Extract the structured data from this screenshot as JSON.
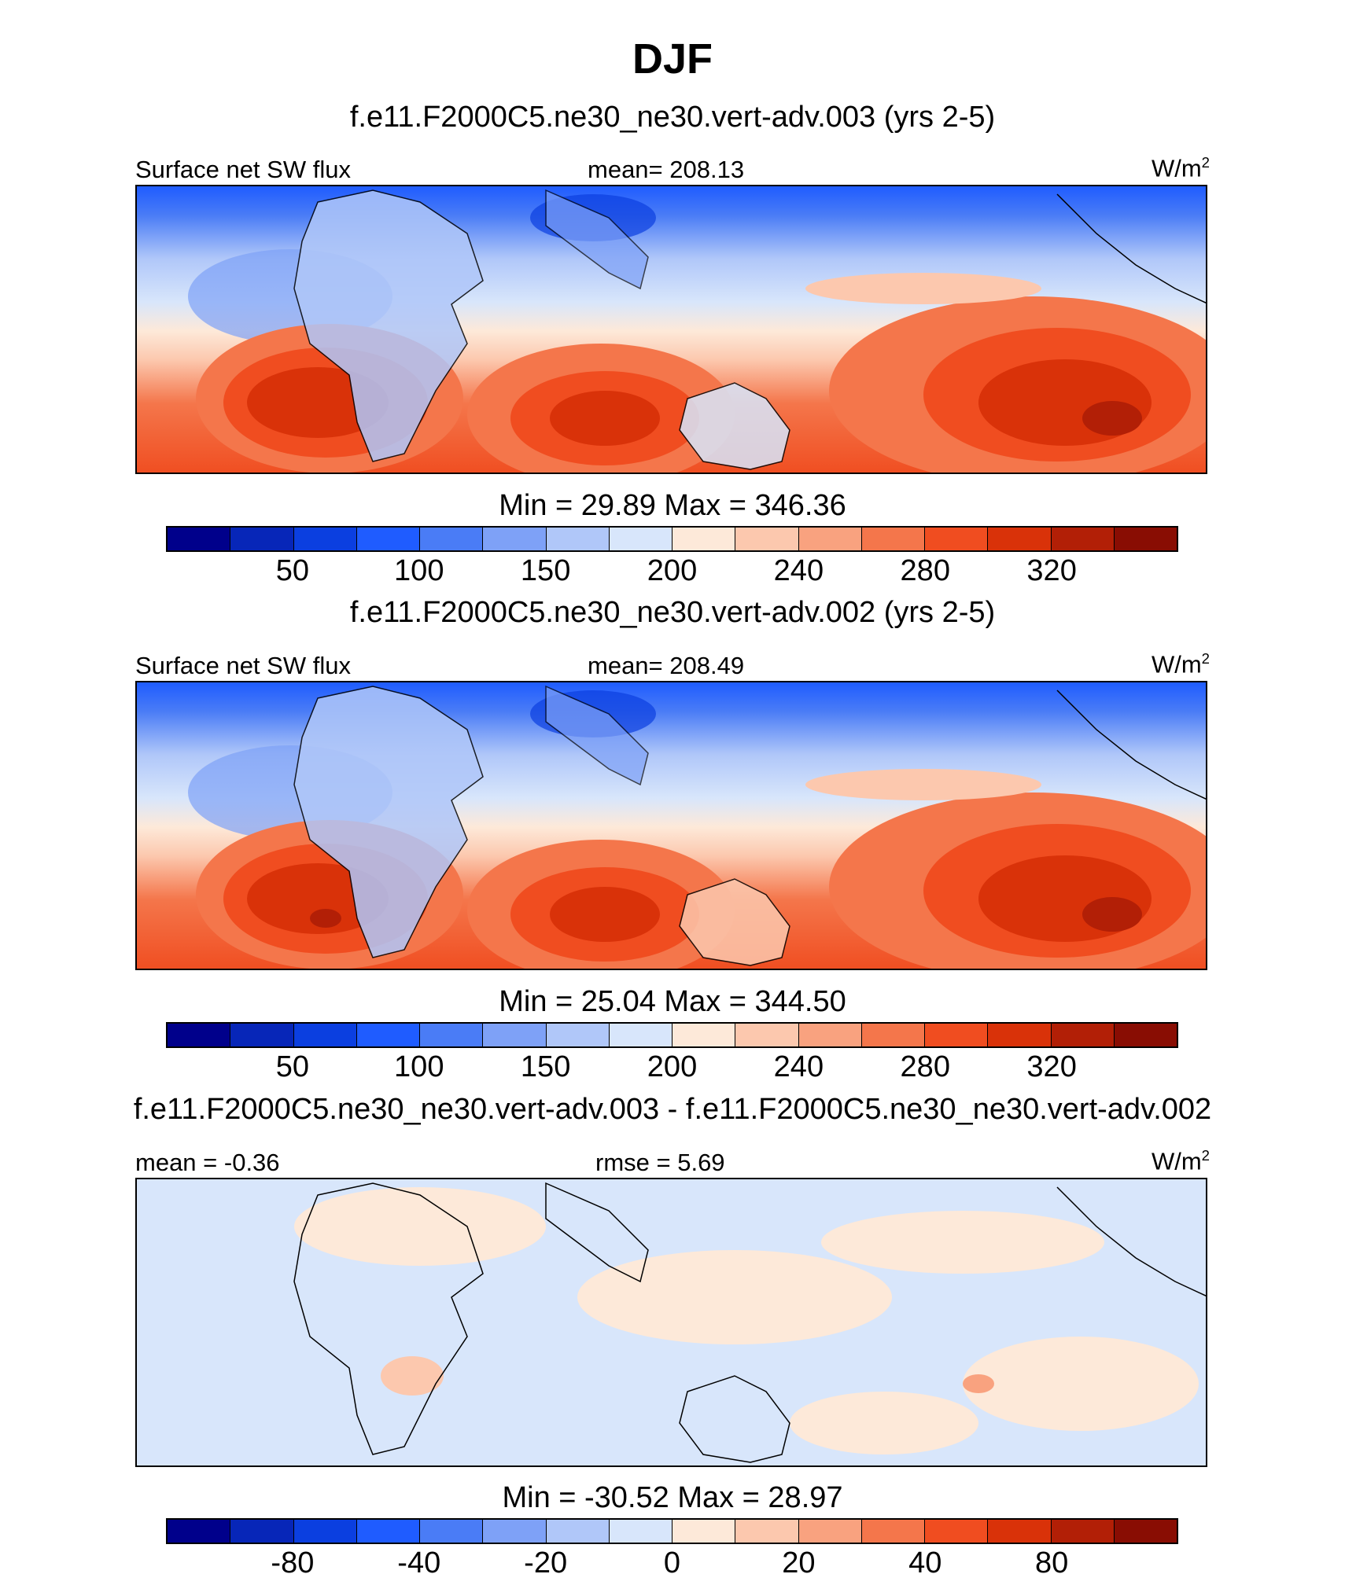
{
  "title": "DJF",
  "colors": [
    "#00008b",
    "#0726b8",
    "#0b3fe0",
    "#1f5cff",
    "#4a7cf6",
    "#7ea1f7",
    "#b0c7f9",
    "#d8e6fb",
    "#fde9d9",
    "#fcc8ae",
    "#f9a27f",
    "#f4764b",
    "#f04d20",
    "#d93209",
    "#b21f06",
    "#890d03"
  ],
  "panels": [
    {
      "title": "f.e11.F2000C5.ne30_ne30.vert-adv.003 (yrs 2-5)",
      "left_label": "Surface net SW flux",
      "center_label": "mean= 208.13",
      "units": "W/m",
      "units_sup": "2",
      "stats": "Min =  29.89 Max = 346.36",
      "ticks": [
        "50",
        "100",
        "150",
        "200",
        "240",
        "280",
        "320"
      ],
      "type": "field"
    },
    {
      "title": "f.e11.F2000C5.ne30_ne30.vert-adv.002 (yrs 2-5)",
      "left_label": "Surface net SW flux",
      "center_label": "mean= 208.49",
      "units": "W/m",
      "units_sup": "2",
      "stats": "Min =  25.04 Max = 344.50",
      "ticks": [
        "50",
        "100",
        "150",
        "200",
        "240",
        "280",
        "320"
      ],
      "type": "field"
    },
    {
      "title": "f.e11.F2000C5.ne30_ne30.vert-adv.003 - f.e11.F2000C5.ne30_ne30.vert-adv.002",
      "left_label": "mean =  -0.36",
      "center_label": "rmse =   5.69",
      "units": "W/m",
      "units_sup": "2",
      "stats": "Min = -30.52 Max =  28.97",
      "ticks": [
        "-80",
        "-40",
        "-20",
        "0",
        "20",
        "40",
        "80"
      ],
      "type": "diff"
    }
  ]
}
